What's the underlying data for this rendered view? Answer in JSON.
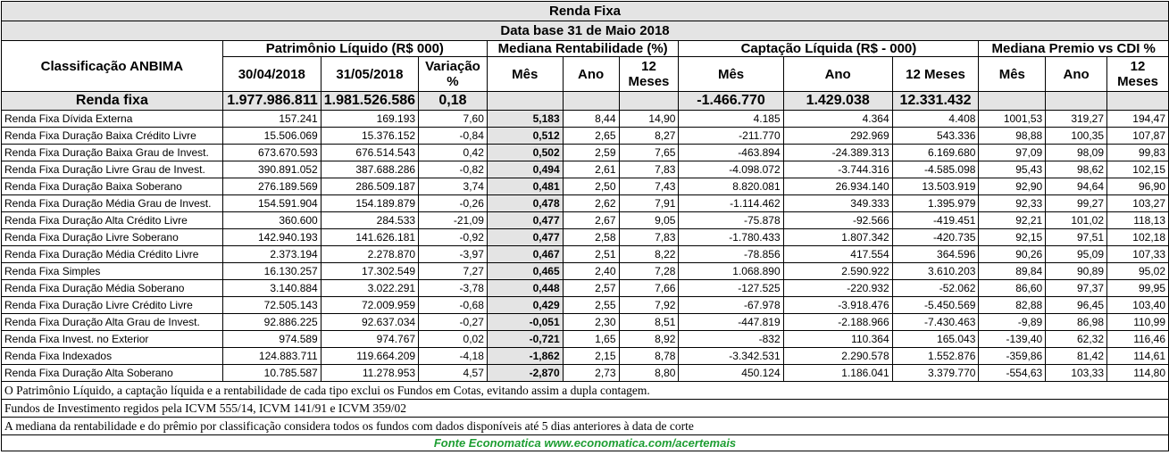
{
  "title": "Renda Fixa",
  "subtitle": "Data base 31 de Maio  2018",
  "headers": {
    "classificacao": "Classificação ANBIMA",
    "groups": [
      "Patrimônio Líquido (R$ 000)",
      "Mediana Rentabilidade (%)",
      "Captação Líquida (R$ - 000)",
      "Mediana Premio vs CDI %"
    ],
    "pl_cols": [
      "30/04/2018",
      "31/05/2018",
      "Variação %"
    ],
    "rent_cols": [
      "Mês",
      "Ano",
      "12 Meses"
    ],
    "capt_cols": [
      "Mês",
      "Ano",
      "12 Meses"
    ],
    "premio_cols": [
      "Mês",
      "Ano",
      "12 Meses"
    ]
  },
  "summary": {
    "label": "Renda fixa",
    "pl_abr": "1.977.986.811",
    "pl_mai": "1.981.526.586",
    "var": "0,18",
    "capt_mes": "-1.466.770",
    "capt_ano": "1.429.038",
    "capt_12m": "12.331.432"
  },
  "rows": [
    [
      "Renda Fixa Dívida Externa",
      "157.241",
      "169.193",
      "7,60",
      "5,183",
      "8,44",
      "14,90",
      "4.185",
      "4.364",
      "4.408",
      "1001,53",
      "319,27",
      "194,47"
    ],
    [
      "Renda Fixa Duração Baixa Crédito Livre",
      "15.506.069",
      "15.376.152",
      "-0,84",
      "0,512",
      "2,65",
      "8,27",
      "-211.770",
      "292.969",
      "543.336",
      "98,88",
      "100,35",
      "107,87"
    ],
    [
      "Renda Fixa Duração Baixa Grau de Invest.",
      "673.670.593",
      "676.514.543",
      "0,42",
      "0,502",
      "2,59",
      "7,65",
      "-463.894",
      "-24.389.313",
      "6.169.680",
      "97,09",
      "98,09",
      "99,83"
    ],
    [
      "Renda Fixa Duração Livre Grau de Invest.",
      "390.891.052",
      "387.688.286",
      "-0,82",
      "0,494",
      "2,61",
      "7,83",
      "-4.098.072",
      "-3.744.316",
      "-4.585.098",
      "95,43",
      "98,62",
      "102,15"
    ],
    [
      "Renda Fixa Duração Baixa Soberano",
      "276.189.569",
      "286.509.187",
      "3,74",
      "0,481",
      "2,50",
      "7,43",
      "8.820.081",
      "26.934.140",
      "13.503.919",
      "92,90",
      "94,64",
      "96,90"
    ],
    [
      "Renda Fixa Duração Média Grau de Invest.",
      "154.591.904",
      "154.189.879",
      "-0,26",
      "0,478",
      "2,62",
      "7,91",
      "-1.114.462",
      "349.333",
      "1.395.979",
      "92,33",
      "99,27",
      "103,27"
    ],
    [
      "Renda Fixa Duração Alta Crédito Livre",
      "360.600",
      "284.533",
      "-21,09",
      "0,477",
      "2,67",
      "9,05",
      "-75.878",
      "-92.566",
      "-419.451",
      "92,21",
      "101,02",
      "118,13"
    ],
    [
      "Renda Fixa Duração Livre Soberano",
      "142.940.193",
      "141.626.181",
      "-0,92",
      "0,477",
      "2,58",
      "7,83",
      "-1.780.433",
      "1.807.342",
      "-420.735",
      "92,15",
      "97,51",
      "102,18"
    ],
    [
      "Renda Fixa Duração Média Crédito Livre",
      "2.373.194",
      "2.278.870",
      "-3,97",
      "0,467",
      "2,51",
      "8,22",
      "-78.856",
      "417.554",
      "364.596",
      "90,26",
      "95,09",
      "107,33"
    ],
    [
      "Renda Fixa Simples",
      "16.130.257",
      "17.302.549",
      "7,27",
      "0,465",
      "2,40",
      "7,28",
      "1.068.890",
      "2.590.922",
      "3.610.203",
      "89,84",
      "90,89",
      "95,02"
    ],
    [
      "Renda Fixa Duração Média Soberano",
      "3.140.884",
      "3.022.291",
      "-3,78",
      "0,448",
      "2,57",
      "7,66",
      "-127.525",
      "-220.932",
      "-52.062",
      "86,60",
      "97,37",
      "99,95"
    ],
    [
      "Renda Fixa Duração Livre Crédito Livre",
      "72.505.143",
      "72.009.959",
      "-0,68",
      "0,429",
      "2,55",
      "7,92",
      "-67.978",
      "-3.918.476",
      "-5.450.569",
      "82,88",
      "96,45",
      "103,40"
    ],
    [
      "Renda Fixa Duração Alta Grau de Invest.",
      "92.886.225",
      "92.637.034",
      "-0,27",
      "-0,051",
      "2,30",
      "8,51",
      "-447.819",
      "-2.188.966",
      "-7.430.463",
      "-9,89",
      "86,98",
      "110,99"
    ],
    [
      "Renda Fixa Invest. no Exterior",
      "974.589",
      "974.767",
      "0,02",
      "-0,721",
      "1,65",
      "8,92",
      "-832",
      "110.364",
      "165.043",
      "-139,40",
      "62,32",
      "116,46"
    ],
    [
      "Renda Fixa Indexados",
      "124.883.711",
      "119.664.209",
      "-4,18",
      "-1,862",
      "2,15",
      "8,78",
      "-3.342.531",
      "2.290.578",
      "1.552.876",
      "-359,86",
      "81,42",
      "114,61"
    ],
    [
      "Renda Fixa Duração Alta Soberano",
      "10.785.587",
      "11.278.953",
      "4,57",
      "-2,870",
      "2,73",
      "8,80",
      "450.124",
      "1.186.041",
      "3.379.770",
      "-554,63",
      "103,33",
      "114,80"
    ]
  ],
  "notes": [
    "O Patrimônio Líquido, a captação líquida e a rentabilidade de cada tipo exclui os Fundos em Cotas, evitando assim a dupla contagem.",
    "Fundos de Investimento regidos pela ICVM 555/14, ICVM 141/91 e ICVM 359/02",
    "A mediana da rentabilidade  e do prêmio por classificação considera todos os fundos com dados disponíveis até 5 dias anteriores à data de corte"
  ],
  "source": "Fonte Economatica www.economatica.com/acertemais"
}
